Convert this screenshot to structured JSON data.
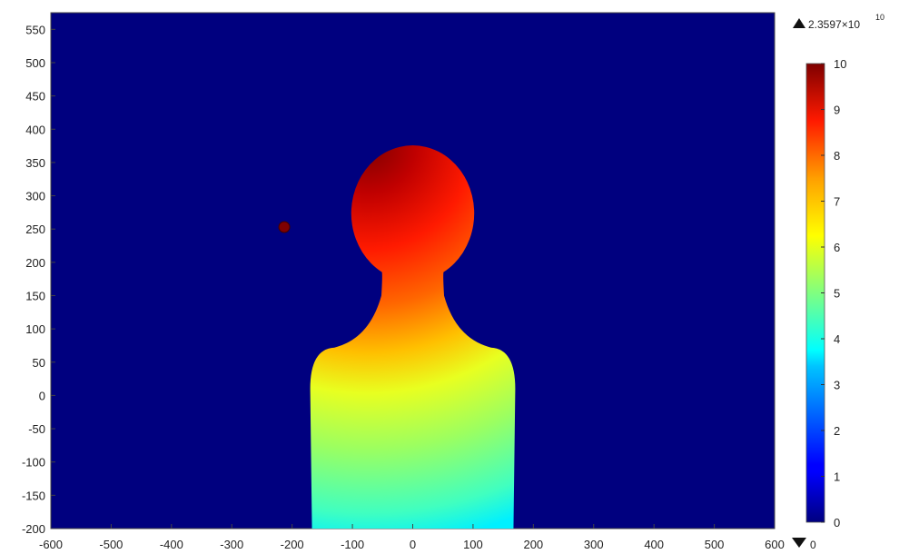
{
  "chart_data": {
    "type": "heatmap",
    "title": "",
    "xlabel": "",
    "ylabel": "",
    "xlim": [
      -600,
      600
    ],
    "ylim": [
      -200,
      575
    ],
    "x_ticks": [
      -600,
      -500,
      -400,
      -300,
      -200,
      -100,
      0,
      100,
      200,
      300,
      400,
      500,
      600
    ],
    "y_ticks": [
      -200,
      -150,
      -100,
      -50,
      0,
      50,
      100,
      150,
      200,
      250,
      300,
      350,
      400,
      450,
      500,
      550
    ],
    "colorbar": {
      "min": 0,
      "max": 10,
      "ticks": [
        0,
        1,
        2,
        3,
        4,
        5,
        6,
        7,
        8,
        9,
        10
      ],
      "colormap": "jet",
      "max_marker_label": "2.3597×10",
      "max_marker_exponent": "10",
      "min_marker_label": "0"
    },
    "background_color": "#00007f",
    "head_body": {
      "head_center": [
        0,
        272
      ],
      "head_radius": 102,
      "shoulder_halfwidth": 170,
      "neck_halfwidth": 52
    },
    "point_marker": {
      "x": -213,
      "y": 253,
      "value": 10
    }
  }
}
